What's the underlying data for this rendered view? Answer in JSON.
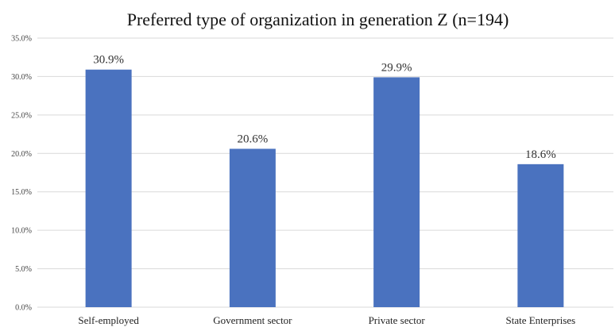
{
  "chart_data": {
    "type": "bar",
    "title": "Preferred type of organization in generation Z (n=194)",
    "xlabel": "",
    "ylabel": "",
    "categories": [
      "Self-employed",
      "Government sector",
      "Private sector",
      "State Enterprises"
    ],
    "values": [
      30.9,
      20.6,
      29.9,
      18.6
    ],
    "data_labels": [
      "30.9%",
      "20.6%",
      "29.9%",
      "18.6%"
    ],
    "ylim": [
      0,
      35
    ],
    "y_ticks": [
      0,
      5,
      10,
      15,
      20,
      25,
      30,
      35
    ],
    "y_tick_labels": [
      "0.0%",
      "5.0%",
      "10.0%",
      "15.0%",
      "20.0%",
      "25.0%",
      "30.0%",
      "35.0%"
    ],
    "grid": "horizontal",
    "legend": "none",
    "bar_color": "#4A72BF",
    "grid_color": "#D9D9D9"
  }
}
